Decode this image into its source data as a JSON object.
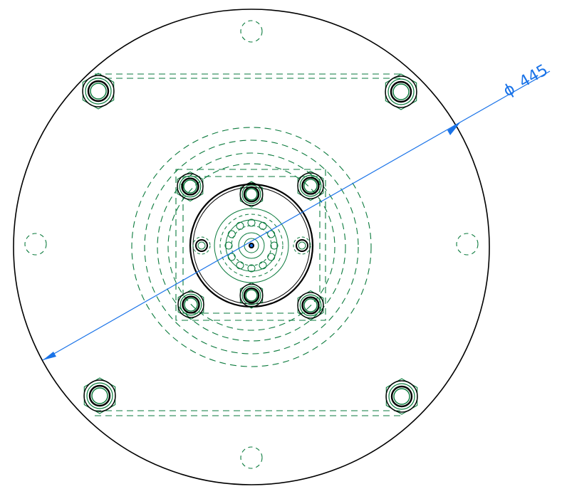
{
  "drawing": {
    "dimension": {
      "symbol": "ϕ",
      "value": "445"
    },
    "colors": {
      "outline": "#000000",
      "hidden_lines": "#0a7a3c",
      "dimension": "#1a73e8",
      "background": "#ffffff"
    },
    "line_styles": {
      "outline": "solid",
      "hidden": "dashed"
    }
  }
}
